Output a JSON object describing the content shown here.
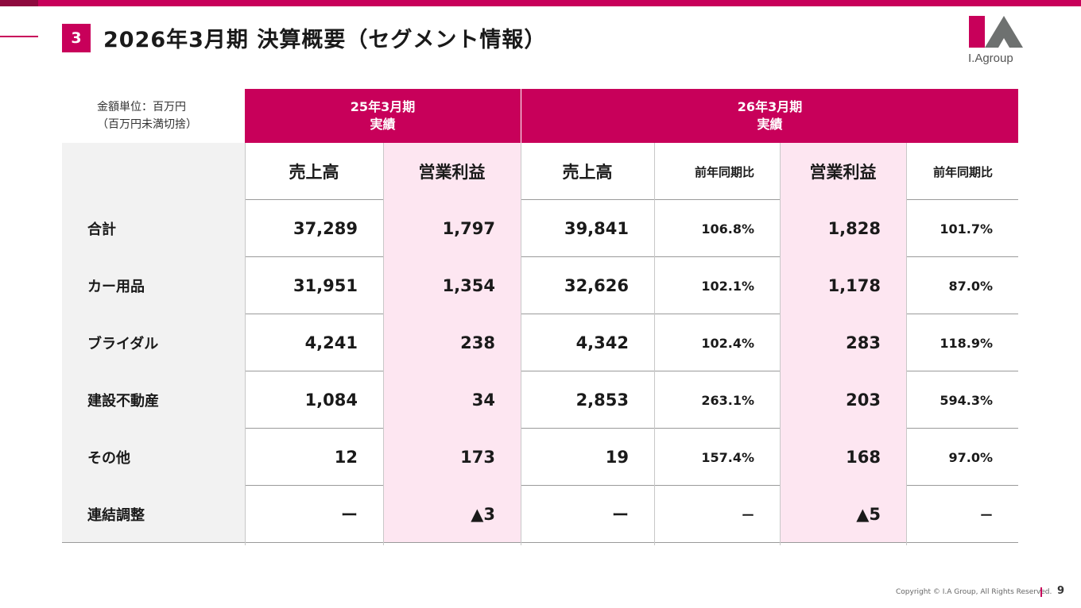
{
  "header": {
    "section_number": "3",
    "title": "2026年3月期 決算概要（セグメント情報）",
    "logo_text": "I.Agroup"
  },
  "table": {
    "unit_note_line1": "金額単位：百万円",
    "unit_note_line2": "（百万円未満切捨）",
    "period_prev": {
      "line1": "25年3月期",
      "line2": "実績"
    },
    "period_curr": {
      "line1": "26年3月期",
      "line2": "実績"
    },
    "columns": [
      "売上高",
      "営業利益",
      "売上高",
      "前年同期比",
      "営業利益",
      "前年同期比"
    ],
    "rows": [
      {
        "label": "合計",
        "cells": [
          "37,289",
          "1,797",
          "39,841",
          "106.8%",
          "1,828",
          "101.7%"
        ]
      },
      {
        "label": "カー用品",
        "cells": [
          "31,951",
          "1,354",
          "32,626",
          "102.1%",
          "1,178",
          "87.0%"
        ]
      },
      {
        "label": "ブライダル",
        "cells": [
          "4,241",
          "238",
          "4,342",
          "102.4%",
          "283",
          "118.9%"
        ]
      },
      {
        "label": "建設不動産",
        "cells": [
          "1,084",
          "34",
          "2,853",
          "263.1%",
          "203",
          "594.3%"
        ]
      },
      {
        "label": "その他",
        "cells": [
          "12",
          "173",
          "19",
          "157.4%",
          "168",
          "97.0%"
        ]
      },
      {
        "label": "連結調整",
        "cells": [
          "ー",
          "▲3",
          "ー",
          "ー",
          "▲5",
          "ー"
        ]
      }
    ]
  },
  "footer": {
    "copyright": "Copyright © I.A Group, All Rights Reserved.",
    "page_number": "9"
  },
  "colors": {
    "brand": "#c8005a",
    "brand_dark": "#8e0a3e",
    "highlight_column": "#fde6f1",
    "label_column": "#f2f2f2"
  }
}
